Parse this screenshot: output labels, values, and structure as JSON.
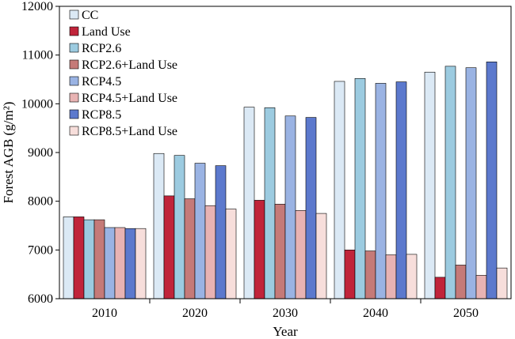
{
  "chart_data": {
    "type": "bar",
    "xlabel": "Year",
    "ylabel": "Forest AGB (g/m²)",
    "ylim": [
      6000,
      12000
    ],
    "yticks": [
      6000,
      7000,
      8000,
      9000,
      10000,
      11000,
      12000
    ],
    "categories": [
      "2010",
      "2020",
      "2030",
      "2040",
      "2050"
    ],
    "grid": false,
    "legend_position": "top-left",
    "series": [
      {
        "name": "CC",
        "color": "#dbe9f5",
        "values": [
          7680,
          8980,
          9930,
          10460,
          10650
        ]
      },
      {
        "name": "Land Use",
        "color": "#c0243a",
        "values": [
          7680,
          8110,
          8020,
          7000,
          6440
        ]
      },
      {
        "name": "RCP2.6",
        "color": "#9ccbe0",
        "values": [
          7620,
          8940,
          9920,
          10520,
          10770
        ]
      },
      {
        "name": "RCP2.6+Land Use",
        "color": "#c57a78",
        "values": [
          7620,
          8050,
          7940,
          6980,
          6690
        ]
      },
      {
        "name": "RCP4.5",
        "color": "#9ab3e3",
        "values": [
          7460,
          8780,
          9750,
          10420,
          10740
        ]
      },
      {
        "name": "RCP4.5+Land Use",
        "color": "#e8b3b3",
        "values": [
          7460,
          7910,
          7810,
          6900,
          6480
        ]
      },
      {
        "name": "RCP8.5",
        "color": "#5c79cd",
        "values": [
          7440,
          8730,
          9720,
          10450,
          10860
        ]
      },
      {
        "name": "RCP8.5+Land Use",
        "color": "#f7dedb",
        "values": [
          7440,
          7840,
          7750,
          6910,
          6630
        ]
      }
    ]
  }
}
